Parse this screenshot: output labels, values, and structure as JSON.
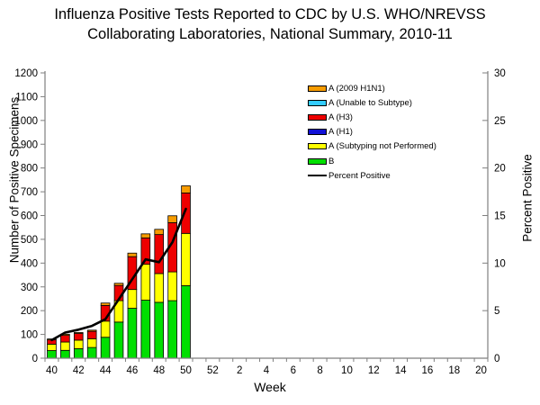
{
  "header": {
    "title_line1": "Influenza Positive Tests Reported to CDC by U.S. WHO/NREVSS",
    "title_line2": "Collaborating Laboratories, National Summary, 2010-11"
  },
  "axes": {
    "left_title": "Number of Positive Specimens",
    "right_title": "Percent Positive",
    "x_title": "Week"
  },
  "chart_data": {
    "type": "bar",
    "stacked": true,
    "title": "Influenza Positive Tests Reported to CDC by U.S. WHO/NREVSS Collaborating Laboratories, National Summary, 2010-11",
    "xlabel": "Week",
    "ylabel_left": "Number of Positive Specimens",
    "ylabel_right": "Percent Positive",
    "ylim_left": [
      0,
      1200
    ],
    "ytick_step_left": 100,
    "ylim_right": [
      0,
      30
    ],
    "ytick_step_right": 5,
    "grid": false,
    "legend_position": "upper-right-inside",
    "x_slot_labels": [
      "40",
      "41",
      "42",
      "43",
      "44",
      "45",
      "46",
      "47",
      "48",
      "49",
      "50",
      "51",
      "52",
      "1",
      "2",
      "3",
      "4",
      "5",
      "6",
      "7",
      "8",
      "9",
      "10",
      "11",
      "12",
      "13",
      "14",
      "15",
      "16",
      "17",
      "18",
      "19",
      "20"
    ],
    "x_tick_labels": [
      "40",
      "42",
      "44",
      "46",
      "48",
      "50",
      "52",
      "2",
      "4",
      "6",
      "8",
      "10",
      "12",
      "14",
      "16",
      "18",
      "20"
    ],
    "categories": [
      "40",
      "41",
      "42",
      "43",
      "44",
      "45",
      "46",
      "47",
      "48",
      "49",
      "50"
    ],
    "series": [
      {
        "name": "A (2009 H1N1)",
        "color": "#F79C00",
        "values": [
          4,
          5,
          4,
          5,
          10,
          9,
          15,
          17,
          22,
          29,
          30
        ]
      },
      {
        "name": "A (Unable to Subtype)",
        "color": "#33CCFF",
        "values": [
          0,
          0,
          0,
          0,
          0,
          0,
          0,
          0,
          0,
          0,
          0
        ]
      },
      {
        "name": "A (H3)",
        "color": "#EE0000",
        "values": [
          18,
          28,
          28,
          31,
          66,
          64,
          138,
          111,
          164,
          207,
          170
        ]
      },
      {
        "name": "A (H1)",
        "color": "#1111D6",
        "values": [
          0,
          0,
          0,
          0,
          0,
          0,
          0,
          0,
          0,
          0,
          0
        ]
      },
      {
        "name": "A (Subtyping not Performed)",
        "color": "#FFFF00",
        "values": [
          27,
          35,
          36,
          37,
          68,
          90,
          79,
          151,
          121,
          121,
          220
        ]
      },
      {
        "name": "B",
        "color": "#00DF00",
        "values": [
          32,
          33,
          40,
          45,
          88,
          152,
          210,
          244,
          235,
          242,
          305
        ]
      }
    ],
    "line_series": {
      "name": "Percent Positive",
      "color": "#000000",
      "values": [
        1.9,
        2.7,
        3.0,
        3.4,
        4.1,
        6.2,
        8.3,
        10.4,
        10.1,
        12.2,
        15.7
      ]
    },
    "colors": {
      "axis": "#7F7F7F",
      "bar_border": "#000000",
      "text": "#000000",
      "background": "#FFFFFF"
    }
  }
}
